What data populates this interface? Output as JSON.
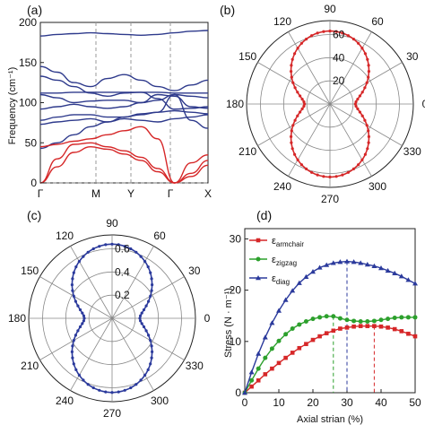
{
  "chart_data": [
    {
      "panel": "(a)",
      "type": "line",
      "ylabel": "Frequency (cm⁻¹)",
      "ylim": [
        0,
        200
      ],
      "yticks": [
        0,
        50,
        100,
        150,
        200
      ],
      "xticks": [
        "Γ",
        "M",
        "Y",
        "Γ",
        "X"
      ],
      "grid": "vertical dashed at high-symmetry points",
      "optical_color": "#2e3a8c",
      "acoustic_color": "#d62728",
      "optical_bands": [
        [
          183,
          185,
          186,
          187,
          186,
          185,
          184,
          185,
          187,
          189,
          190
        ],
        [
          145,
          138,
          125,
          120,
          130,
          135,
          128,
          120,
          115,
          122,
          128
        ],
        [
          133,
          128,
          120,
          112,
          108,
          112,
          113,
          105,
          92,
          93,
          95
        ],
        [
          112,
          112,
          113,
          113,
          113,
          113,
          113,
          113,
          112,
          112,
          112
        ],
        [
          110,
          106,
          100,
          102,
          103,
          103,
          100,
          103,
          110,
          108,
          106
        ],
        [
          92,
          95,
          98,
          95,
          93,
          95,
          100,
          110,
          108,
          95,
          93
        ],
        [
          78,
          82,
          85,
          85,
          82,
          82,
          86,
          88,
          90,
          88,
          86
        ],
        [
          73,
          76,
          78,
          80,
          76,
          80,
          78,
          76,
          80,
          82,
          85
        ],
        [
          43,
          50,
          60,
          70,
          76,
          82,
          85,
          88,
          110,
          78,
          68
        ]
      ],
      "acoustic_bands": [
        [
          45,
          48,
          52,
          55,
          60,
          65,
          70,
          55,
          0,
          25,
          35
        ],
        [
          0,
          30,
          48,
          50,
          45,
          40,
          32,
          18,
          0,
          12,
          28
        ],
        [
          0,
          20,
          38,
          45,
          42,
          36,
          28,
          14,
          0,
          8,
          22
        ]
      ]
    },
    {
      "panel": "(b)",
      "type": "polar",
      "rticks": [
        20,
        40,
        60
      ],
      "rlim": [
        0,
        72
      ],
      "angle_ticks": [
        0,
        30,
        60,
        90,
        120,
        150,
        180,
        210,
        240,
        270,
        300,
        330
      ],
      "angle_tick_labels": [
        "0",
        "30",
        "60",
        "90",
        "120",
        "150",
        "180",
        "210",
        "240",
        "270",
        "300",
        "330"
      ],
      "color": "#d62728",
      "model": {
        "a": 63,
        "b": 22,
        "p": 2
      }
    },
    {
      "panel": "(c)",
      "type": "polar",
      "rticks": [
        0.2,
        0.4,
        0.6
      ],
      "rlim": [
        0,
        0.72
      ],
      "angle_ticks": [
        0,
        30,
        60,
        90,
        120,
        150,
        180,
        210,
        240,
        270,
        300,
        330
      ],
      "angle_tick_labels": [
        "0",
        "30",
        "60",
        "90",
        "120",
        "150",
        "180",
        "210",
        "240",
        "270",
        "300",
        "330"
      ],
      "color": "#2b3a9c",
      "model": {
        "a": 0.64,
        "b": 0.24,
        "p": 2
      }
    },
    {
      "panel": "(d)",
      "type": "line",
      "xlabel": "Axial strian (%)",
      "ylabel": "Stress (N · m⁻¹)",
      "xlim": [
        0,
        50
      ],
      "ylim": [
        0,
        32
      ],
      "xticks": [
        0,
        10,
        20,
        30,
        40,
        50
      ],
      "yticks": [
        0,
        10,
        20,
        30
      ],
      "legend_placement": "top-left",
      "series": [
        {
          "name": "ε",
          "subscript": "armchair",
          "color": "#d62728",
          "marker": "square",
          "x": [
            0,
            2,
            4,
            6,
            8,
            10,
            12,
            14,
            16,
            18,
            20,
            22,
            24,
            26,
            28,
            30,
            32,
            34,
            36,
            38,
            40,
            42,
            44,
            46,
            48,
            50
          ],
          "y": [
            0,
            1.2,
            2.4,
            3.6,
            4.7,
            5.8,
            6.8,
            7.8,
            8.7,
            9.5,
            10.3,
            11.0,
            11.6,
            12.1,
            12.5,
            12.7,
            12.9,
            13.0,
            13.0,
            13.0,
            12.9,
            12.7,
            12.4,
            12.0,
            11.5,
            11.0
          ],
          "peak_x": 38
        },
        {
          "name": "ε",
          "subscript": "zigzag",
          "color": "#2ca02c",
          "marker": "circle",
          "x": [
            0,
            2,
            4,
            6,
            8,
            10,
            12,
            14,
            16,
            18,
            20,
            22,
            24,
            26,
            28,
            30,
            32,
            34,
            36,
            38,
            40,
            42,
            44,
            46,
            48,
            50
          ],
          "y": [
            0,
            2.4,
            4.7,
            6.8,
            8.6,
            10.1,
            11.4,
            12.5,
            13.3,
            13.9,
            14.4,
            14.7,
            14.9,
            14.9,
            14.5,
            14.2,
            14.0,
            13.9,
            13.9,
            14.0,
            14.2,
            14.4,
            14.6,
            14.7,
            14.7,
            14.7
          ],
          "peak_x": 26
        },
        {
          "name": "ε",
          "subscript": "diag",
          "color": "#2b3a9c",
          "marker": "triangle",
          "x": [
            0,
            2,
            4,
            6,
            8,
            10,
            12,
            14,
            16,
            18,
            20,
            22,
            24,
            26,
            28,
            30,
            32,
            34,
            36,
            38,
            40,
            42,
            44,
            46,
            48,
            50
          ],
          "y": [
            0,
            4.0,
            7.6,
            10.8,
            13.6,
            16.0,
            18.1,
            19.9,
            21.4,
            22.6,
            23.6,
            24.4,
            24.9,
            25.3,
            25.5,
            25.6,
            25.5,
            25.3,
            25.0,
            24.7,
            24.3,
            23.8,
            23.3,
            22.7,
            22.0,
            21.3
          ],
          "peak_x": 30
        }
      ]
    }
  ]
}
